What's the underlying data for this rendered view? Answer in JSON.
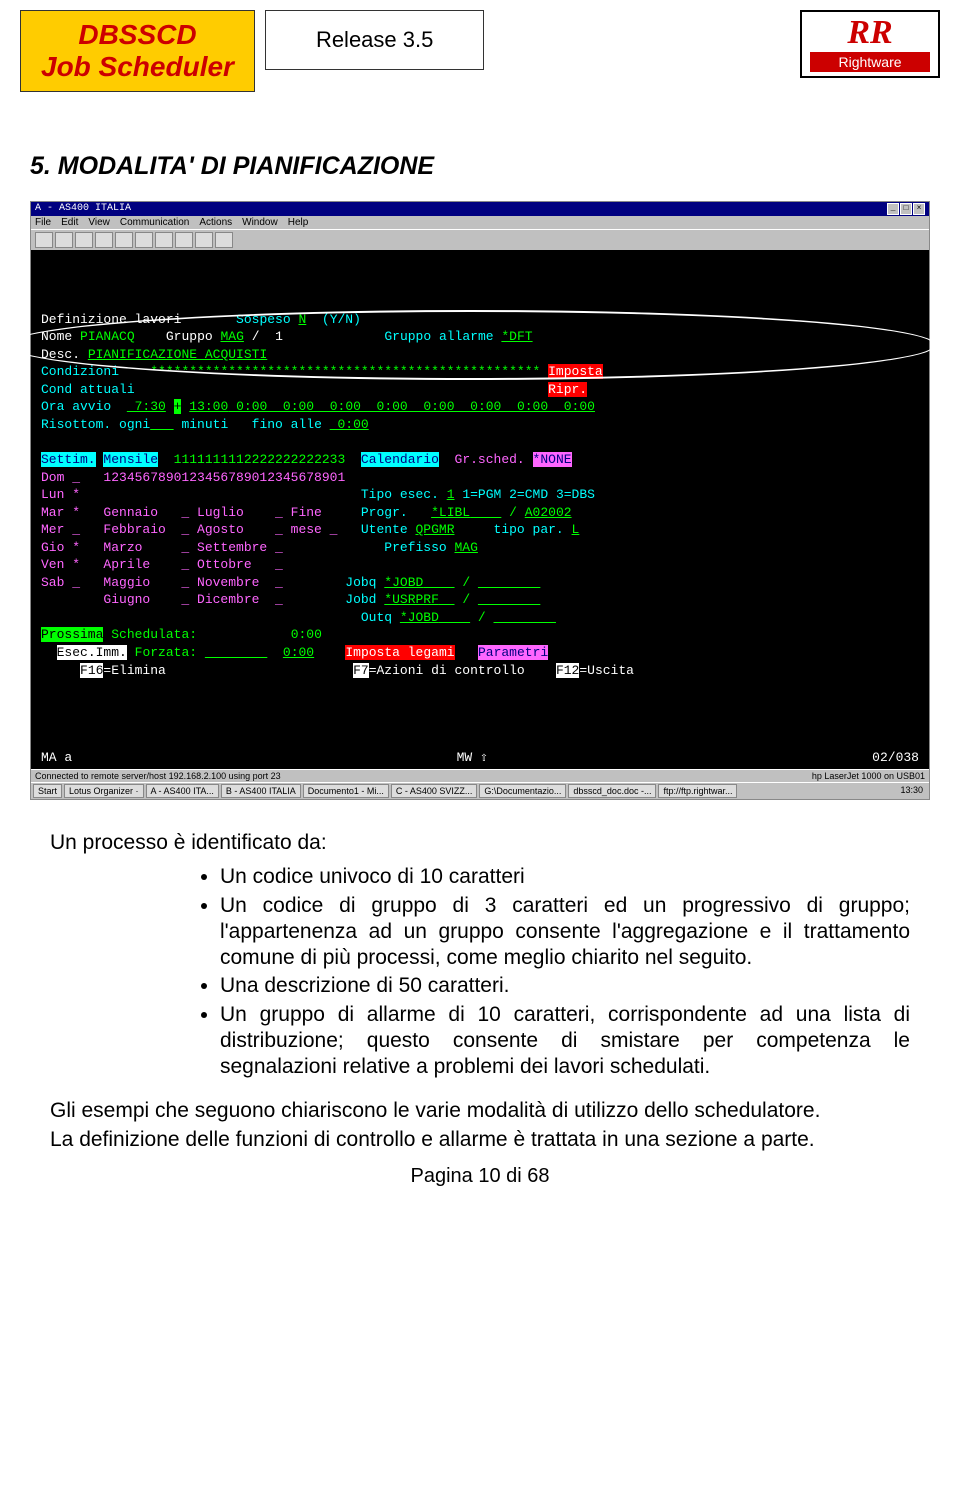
{
  "header": {
    "product_line1": "DBSSCD",
    "product_line2": "Job Scheduler",
    "release": "Release 3.5",
    "logo_text": "RR",
    "logo_sub": "Rightware"
  },
  "section_title": "5. MODALITA' DI PIANIFICAZIONE",
  "window": {
    "title": "A - AS400 ITALIA",
    "menus": [
      "File",
      "Edit",
      "View",
      "Communication",
      "Actions",
      "Window",
      "Help"
    ]
  },
  "terminal": {
    "l1_label": "Definizione lavori",
    "l1_susp_lbl": "Sospeso",
    "l1_susp_val": "N",
    "l1_susp_hint": "(Y/N)",
    "l2_nome_lbl": "Nome",
    "l2_nome_val": "PIANACQ",
    "l2_gruppo_lbl": "Gruppo",
    "l2_gruppo_val": "MAG",
    "l2_slash_num": "/  1",
    "l2_gralarm_lbl": "Gruppo allarme",
    "l2_gralarm_val": "*DFT",
    "l3_desc_lbl": "Desc.",
    "l3_desc_val": "PIANIFICAZIONE ACQUISTI",
    "l4_cond_lbl": "Condizioni",
    "l4_cond_val": "**************************************************",
    "l4_imposta": "Imposta",
    "l5_catt_lbl": "Cond attuali",
    "l5_ripr": "Ripr.",
    "l6_ora_lbl": "Ora avvio",
    "l6_t1": " 7:30",
    "l6_plus": "+",
    "l6_t2": "13:00",
    "l6_zeros": " 0:00  0:00  0:00  0:00  0:00  0:00  0:00  0:00",
    "l7_ris_lbl": "Risottom. ogni",
    "l7_min": "minuti",
    "l7_fino": "fino alle",
    "l7_val": " 0:00",
    "band_settim": "Settim.",
    "band_mensile": "Mensile",
    "band_nums": "1111111112222222222233",
    "band_cal": "Calendario",
    "band_gr": "Gr.sched.",
    "band_none": "*NONE",
    "dom_row": "Dom _   1234567890123456789012345678901",
    "days": {
      "lun": "Lun *",
      "mar": "Mar *   Gennaio   _ Luglio    _ Fine",
      "mer": "Mer _   Febbraio  _ Agosto    _ mese _",
      "gio": "Gio *   Marzo     _ Settembre _",
      "ven": "Ven *   Aprile    _ Ottobre   _",
      "sab": "Sab _   Maggio    _ Novembre  _",
      "giu": "        Giugno    _ Dicembre  _"
    },
    "right": {
      "tipo_lbl": "Tipo esec.",
      "tipo_val": "1",
      "tipo_hint": "1=PGM 2=CMD 3=DBS",
      "progr_lbl": "Progr.",
      "progr_lib": "*LIBL",
      "progr_val": "A02002",
      "utente_lbl": "Utente",
      "utente_val": "QPGMR",
      "tipopar_lbl": "tipo par.",
      "tipopar_val": "L",
      "prefisso_lbl": "Prefisso",
      "prefisso_val": "MAG",
      "jobq_lbl": "Jobq",
      "jobq_val": "*JOBD",
      "jobd_lbl": "Jobd",
      "jobd_val": "*USRPRF",
      "outq_lbl": "Outq",
      "outq_val": "*JOBD"
    },
    "prossima_lbl": "Prossima",
    "prossima_txt": "Schedulata:",
    "prossima_val": "0:00",
    "esec_lbl": "Esec.Imm.",
    "forzata_lbl": "Forzata:",
    "forzata_val": "0:00",
    "imposta_legami": "Imposta legami",
    "parametri": "Parametri",
    "f16": "F16",
    "elimina": "=Elimina",
    "f7": "F7",
    "azioni": "=Azioni di controllo",
    "f12": "F12",
    "uscita": "=Uscita"
  },
  "statusbar": {
    "left": "MA    a",
    "mid": "MW            ⇧",
    "right": "02/038",
    "win_left": "Connected to remote server/host 192.168.2.100 using port 23",
    "win_right": "hp LaserJet 1000 on USB01"
  },
  "taskbar": {
    "start": "Start",
    "items": [
      "Lotus Organizer ·",
      "A - AS400 ITA...",
      "B - AS400 ITALIA",
      "Documento1 - Mi...",
      "C - AS400 SVIZZ...",
      "G:\\Documentazio...",
      "dbsscd_doc.doc -...",
      "ftp://ftp.rightwar..."
    ],
    "clock": "13:30"
  },
  "body": {
    "intro": "Un processo è identificato da:",
    "bullets": [
      "Un codice univoco di 10 caratteri",
      "Un codice di gruppo di 3 caratteri ed un progressivo di gruppo; l'appartenenza ad un gruppo consente l'aggregazione e il trattamento comune di più processi, come meglio chiarito nel seguito.",
      "Una descrizione di 50 caratteri.",
      "Un gruppo di allarme di 10 caratteri, corrispondente ad una lista di distribuzione; questo consente di smistare per competenza le segnalazioni relative a problemi dei lavori schedulati."
    ],
    "para1": "Gli esempi che seguono chiariscono le varie modalità di utilizzo dello schedulatore.",
    "para2": "La definizione delle funzioni di controllo e allarme è trattata in una sezione a parte.",
    "pagenum": "Pagina 10 di 68"
  }
}
